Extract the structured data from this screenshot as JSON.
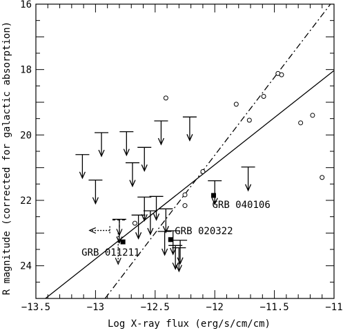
{
  "chart_data": {
    "type": "scatter",
    "title": "",
    "xlabel": "Log X-ray flux (erg/s/cm/cm)",
    "ylabel": "R magnitude (corrected for galactic absorption)",
    "xlim": [
      -13.5,
      -11.0
    ],
    "ylim": [
      25.0,
      16.0
    ],
    "y_inverted": true,
    "x_ticks": [
      -13.5,
      -13.0,
      -12.5,
      -12.0,
      -11.5,
      -11.0
    ],
    "x_tick_labels": [
      "−13.5",
      "−13",
      "−12.5",
      "−12",
      "−11.5",
      "−11"
    ],
    "y_ticks": [
      16,
      18,
      20,
      22,
      24
    ],
    "y_tick_labels": [
      "16",
      "18",
      "20",
      "22",
      "24"
    ],
    "grid": false,
    "detections": [
      {
        "x": -12.41,
        "y": 18.87
      },
      {
        "x": -12.1,
        "y": 21.12
      },
      {
        "x": -12.25,
        "y": 21.83
      },
      {
        "x": -12.25,
        "y": 22.16
      },
      {
        "x": -12.67,
        "y": 22.7
      },
      {
        "x": -11.82,
        "y": 19.06
      },
      {
        "x": -11.71,
        "y": 19.55
      },
      {
        "x": -11.59,
        "y": 18.82
      },
      {
        "x": -11.47,
        "y": 18.12
      },
      {
        "x": -11.44,
        "y": 18.16
      },
      {
        "x": -11.28,
        "y": 19.63
      },
      {
        "x": -11.18,
        "y": 19.4
      },
      {
        "x": -11.1,
        "y": 21.3
      }
    ],
    "upper_limits": [
      {
        "x": -13.11,
        "y": 20.6
      },
      {
        "x": -13.0,
        "y": 21.38
      },
      {
        "x": -12.95,
        "y": 19.93
      },
      {
        "x": -12.8,
        "y": 22.58
      },
      {
        "x": -12.74,
        "y": 19.9
      },
      {
        "x": -12.69,
        "y": 20.85
      },
      {
        "x": -12.64,
        "y": 22.45
      },
      {
        "x": -12.59,
        "y": 20.38
      },
      {
        "x": -12.59,
        "y": 21.9
      },
      {
        "x": -12.54,
        "y": 22.32
      },
      {
        "x": -12.49,
        "y": 21.88
      },
      {
        "x": -12.45,
        "y": 19.57
      },
      {
        "x": -12.42,
        "y": 22.95
      },
      {
        "x": -12.41,
        "y": 22.26
      },
      {
        "x": -12.35,
        "y": 22.93
      },
      {
        "x": -12.33,
        "y": 23.38
      },
      {
        "x": -12.3,
        "y": 23.45
      },
      {
        "x": -12.29,
        "y": 23.22
      },
      {
        "x": -12.21,
        "y": 19.45
      },
      {
        "x": -12.0,
        "y": 21.4
      },
      {
        "x": -11.72,
        "y": 20.98
      }
    ],
    "highlighted": [
      {
        "label": "GRB 011211",
        "x": -12.77,
        "y": 23.27
      },
      {
        "label": "GRB 020322",
        "x": -12.37,
        "y": 23.2
      },
      {
        "label": "GRB 040106",
        "x": -12.01,
        "y": 21.85
      }
    ],
    "grb_011211_limits": {
      "x": -12.8,
      "y": 22.92
    },
    "lines": [
      {
        "style": "solid",
        "x1": -13.42,
        "y1": 25.0,
        "x2": -11.0,
        "y2": 18.03
      },
      {
        "style": "dashdot",
        "x1": -12.92,
        "y1": 25.0,
        "x2": -11.03,
        "y2": 16.0
      }
    ]
  }
}
